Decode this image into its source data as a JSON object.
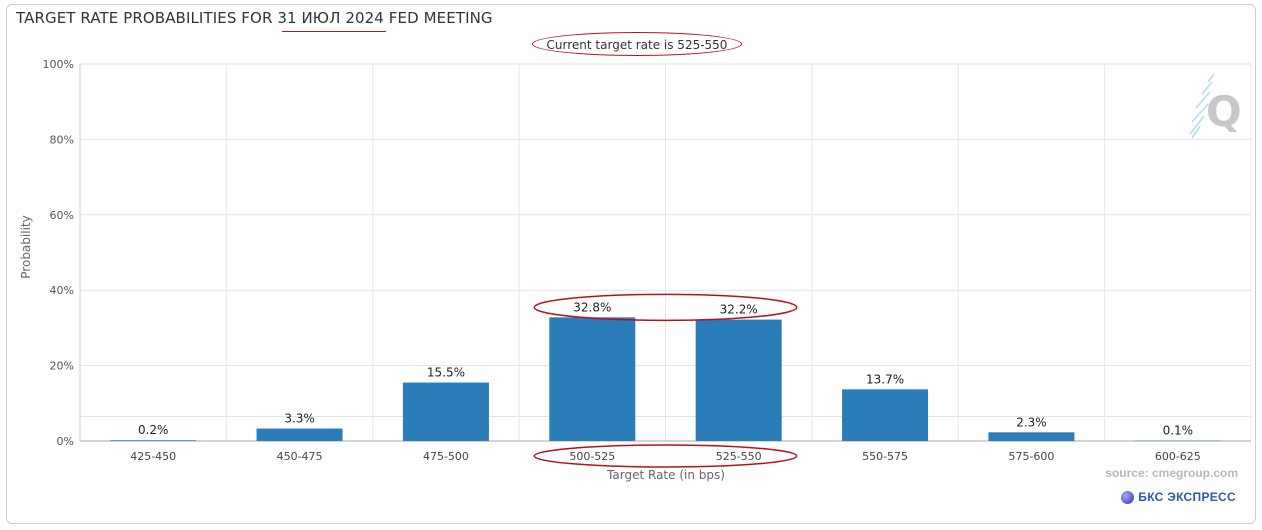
{
  "chart_data": {
    "type": "bar",
    "title": "TARGET RATE PROBABILITIES FOR 31 ИЮЛ 2024 FED MEETING",
    "subtitle": "Current target rate is 525-550",
    "xlabel": "Target Rate (in bps)",
    "ylabel": "Probability",
    "categories": [
      "425-450",
      "450-475",
      "475-500",
      "500-525",
      "525-550",
      "550-575",
      "575-600",
      "600-625"
    ],
    "values": [
      0.2,
      3.3,
      15.5,
      32.8,
      32.2,
      13.7,
      2.3,
      0.1
    ],
    "data_labels": [
      "0.2%",
      "3.3%",
      "15.5%",
      "32.8%",
      "32.2%",
      "13.7%",
      "2.3%",
      "0.1%"
    ],
    "yticks": [
      "0%",
      "20%",
      "40%",
      "60%",
      "80%",
      "100%"
    ],
    "ylim": [
      0,
      100
    ],
    "grid": true,
    "bar_color": "#2a7db8"
  },
  "footer": {
    "source": "source: cmegroup.com",
    "brand": "БКС ЭКСПРЕСС"
  },
  "annotations": {
    "highlight_color": "#b5121b"
  }
}
